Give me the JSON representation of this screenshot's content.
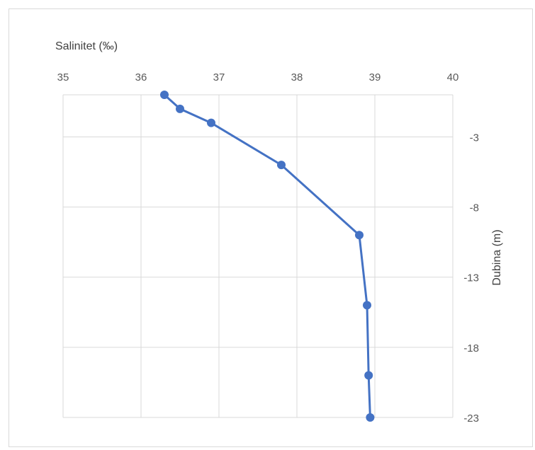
{
  "chart_data": {
    "type": "line",
    "xlabel": "Salinitet (‰)",
    "ylabel": "Dubina (m)",
    "x_axis_position": "top",
    "y_axis_position": "right",
    "xlim": [
      35,
      40
    ],
    "ylim": [
      -23,
      0
    ],
    "x_ticks": [
      "35",
      "36",
      "37",
      "38",
      "39",
      "40"
    ],
    "y_ticks": [
      "-3",
      "-8",
      "-13",
      "-18",
      "-23"
    ],
    "grid": true,
    "series": [
      {
        "color": "#4472c4",
        "marker_color": "#4472c4",
        "points": [
          {
            "x": 36.3,
            "y": 0
          },
          {
            "x": 36.5,
            "y": -1
          },
          {
            "x": 36.9,
            "y": -2
          },
          {
            "x": 37.8,
            "y": -5
          },
          {
            "x": 38.8,
            "y": -10
          },
          {
            "x": 38.9,
            "y": -15
          },
          {
            "x": 38.92,
            "y": -20
          },
          {
            "x": 38.94,
            "y": -23
          }
        ]
      }
    ]
  }
}
